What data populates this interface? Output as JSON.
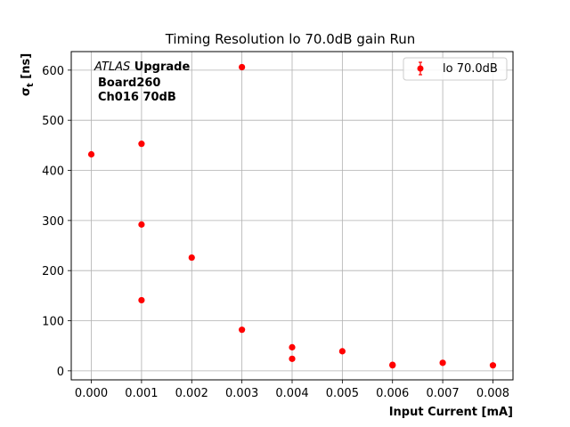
{
  "chart_data": {
    "type": "scatter",
    "title": "Timing Resolution lo 70.0dB gain Run",
    "xlabel": "Input Current [mA]",
    "ylabel_main": "σ",
    "ylabel_sub": "t",
    "ylabel_unit": " [ns]",
    "xlim": [
      -0.0004,
      0.0084
    ],
    "ylim": [
      -18,
      637
    ],
    "xticks": [
      0.0,
      0.001,
      0.002,
      0.003,
      0.004,
      0.005,
      0.006,
      0.007,
      0.008
    ],
    "xtick_labels": [
      "0.000",
      "0.001",
      "0.002",
      "0.003",
      "0.004",
      "0.005",
      "0.006",
      "0.007",
      "0.008"
    ],
    "yticks": [
      0,
      100,
      200,
      300,
      400,
      500,
      600
    ],
    "ytick_labels": [
      "0",
      "100",
      "200",
      "300",
      "400",
      "500",
      "600"
    ],
    "grid": true,
    "legend_position": "top-right",
    "series": [
      {
        "name": "lo 70.0dB",
        "color": "#ff0000",
        "marker": "circle",
        "points": [
          {
            "x": 0.0,
            "y": 432
          },
          {
            "x": 0.001,
            "y": 453
          },
          {
            "x": 0.001,
            "y": 292
          },
          {
            "x": 0.001,
            "y": 141
          },
          {
            "x": 0.002,
            "y": 226
          },
          {
            "x": 0.003,
            "y": 606
          },
          {
            "x": 0.003,
            "y": 82
          },
          {
            "x": 0.004,
            "y": 47
          },
          {
            "x": 0.004,
            "y": 24
          },
          {
            "x": 0.005,
            "y": 39
          },
          {
            "x": 0.006,
            "y": 12
          },
          {
            "x": 0.006,
            "y": 11
          },
          {
            "x": 0.007,
            "y": 16
          },
          {
            "x": 0.008,
            "y": 11
          }
        ]
      }
    ],
    "annotation": {
      "atlas_italic": "ATLAS",
      "atlas_bold": " Upgrade",
      "line2": "Board260",
      "line3": "Ch016 70dB"
    }
  }
}
